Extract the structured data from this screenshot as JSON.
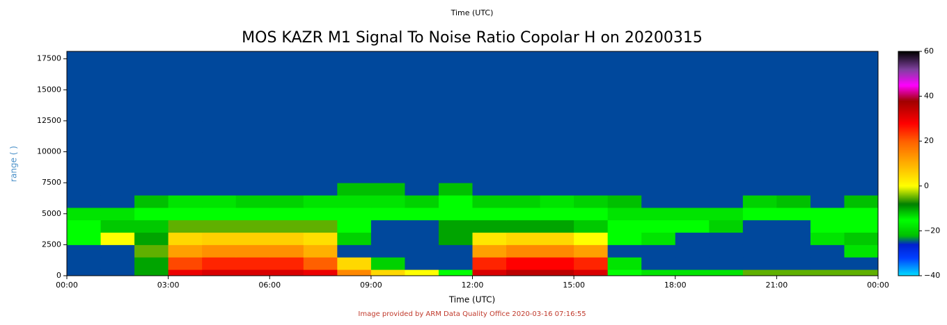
{
  "chart_data": {
    "type": "heatmap",
    "top_label": "Time (UTC)",
    "title": "MOS KAZR M1 Signal To Noise Ratio Copolar H on 20200315",
    "x_label": "Time (UTC)",
    "y_label": "range (  )",
    "y_label_color": "#4a90c8",
    "footer": "Image provided by ARM Data Quality Office 2020-03-16 07:16:55",
    "footer_color": "#c0392b",
    "xlim": [
      0,
      24
    ],
    "xticks": [
      {
        "value": 0,
        "label": "00:00"
      },
      {
        "value": 3,
        "label": "03:00"
      },
      {
        "value": 6,
        "label": "06:00"
      },
      {
        "value": 9,
        "label": "09:00"
      },
      {
        "value": 12,
        "label": "12:00"
      },
      {
        "value": 15,
        "label": "15:00"
      },
      {
        "value": 18,
        "label": "18:00"
      },
      {
        "value": 21,
        "label": "21:00"
      },
      {
        "value": 24,
        "label": "00:00"
      }
    ],
    "ylim": [
      0,
      18100
    ],
    "yticks": [
      0,
      2500,
      5000,
      7500,
      10000,
      12500,
      15000,
      17500
    ],
    "clim": [
      -40,
      60
    ],
    "cticks": [
      {
        "value": -40,
        "label": "−40"
      },
      {
        "value": -20,
        "label": "−20"
      },
      0,
      20,
      40,
      60
    ],
    "x_edges": [
      0,
      1,
      2,
      3,
      4,
      5,
      6,
      7,
      8,
      9,
      10,
      11,
      12,
      13,
      14,
      15,
      16,
      17,
      18,
      19,
      20,
      21,
      22,
      23,
      24
    ],
    "y_edges": [
      0,
      500,
      1500,
      2500,
      3500,
      4500,
      5500,
      6500,
      7500,
      10000,
      12500,
      15000,
      18100
    ],
    "z": [
      [
        -25,
        -25,
        -10,
        30,
        32,
        32,
        32,
        30,
        15,
        5,
        0,
        -15,
        32,
        35,
        35,
        32,
        -15,
        -18,
        -18,
        -18,
        -5,
        -5,
        -5,
        -5
      ],
      [
        -25,
        -25,
        -10,
        22,
        25,
        25,
        25,
        20,
        5,
        -20,
        -25,
        -25,
        25,
        28,
        28,
        25,
        -18,
        -25,
        -25,
        -25,
        -25,
        -25,
        -25,
        -25
      ],
      [
        -25,
        -25,
        -5,
        12,
        14,
        14,
        14,
        10,
        -25,
        -25,
        -25,
        -25,
        12,
        15,
        15,
        12,
        -25,
        -25,
        -25,
        -25,
        -25,
        -25,
        -25,
        -18
      ],
      [
        -15,
        0,
        -10,
        5,
        6,
        6,
        6,
        4,
        -20,
        -25,
        -25,
        -10,
        3,
        5,
        5,
        0,
        -15,
        -18,
        -25,
        -25,
        -25,
        -25,
        -18,
        -12
      ],
      [
        -15,
        -12,
        -12,
        -5,
        -5,
        -5,
        -5,
        -5,
        -15,
        -25,
        -25,
        -10,
        -10,
        -10,
        -10,
        -12,
        -15,
        -15,
        -15,
        -20,
        -25,
        -25,
        -15,
        -15
      ],
      [
        -18,
        -18,
        -15,
        -15,
        -15,
        -15,
        -15,
        -15,
        -15,
        -15,
        -15,
        -15,
        -15,
        -15,
        -15,
        -15,
        -18,
        -18,
        -18,
        -18,
        -15,
        -15,
        -15,
        -15
      ],
      [
        -25,
        -25,
        -22,
        -18,
        -18,
        -20,
        -20,
        -18,
        -18,
        -18,
        -20,
        -15,
        -20,
        -20,
        -18,
        -20,
        -22,
        -25,
        -25,
        -25,
        -20,
        -22,
        -25,
        -22
      ],
      [
        -25,
        -25,
        -25,
        -25,
        -25,
        -25,
        -25,
        -25,
        -22,
        -22,
        -25,
        -22,
        -25,
        -25,
        -25,
        -25,
        -25,
        -25,
        -25,
        -25,
        -25,
        -25,
        -25,
        -25
      ],
      [
        -25,
        -25,
        -25,
        -25,
        -25,
        -25,
        -25,
        -25,
        -25,
        -25,
        -25,
        -25,
        -25,
        -25,
        -25,
        -25,
        -25,
        -25,
        -25,
        -25,
        -25,
        -25,
        -25,
        -25
      ],
      [
        -25,
        -25,
        -25,
        -25,
        -25,
        -25,
        -25,
        -25,
        -25,
        -25,
        -25,
        -25,
        -25,
        -25,
        -25,
        -25,
        -25,
        -25,
        -25,
        -25,
        -25,
        -25,
        -25,
        -25
      ],
      [
        -25,
        -25,
        -25,
        -25,
        -25,
        -25,
        -25,
        -25,
        -25,
        -25,
        -25,
        -25,
        -25,
        -25,
        -25,
        -25,
        -25,
        -25,
        -25,
        -25,
        -25,
        -25,
        -25,
        -25
      ],
      [
        -25,
        -25,
        -25,
        -25,
        -25,
        -25,
        -25,
        -25,
        -25,
        -25,
        -25,
        -25,
        -25,
        -25,
        -25,
        -25,
        -25,
        -25,
        -25,
        -25,
        -25,
        -25,
        -25,
        -25
      ]
    ]
  }
}
